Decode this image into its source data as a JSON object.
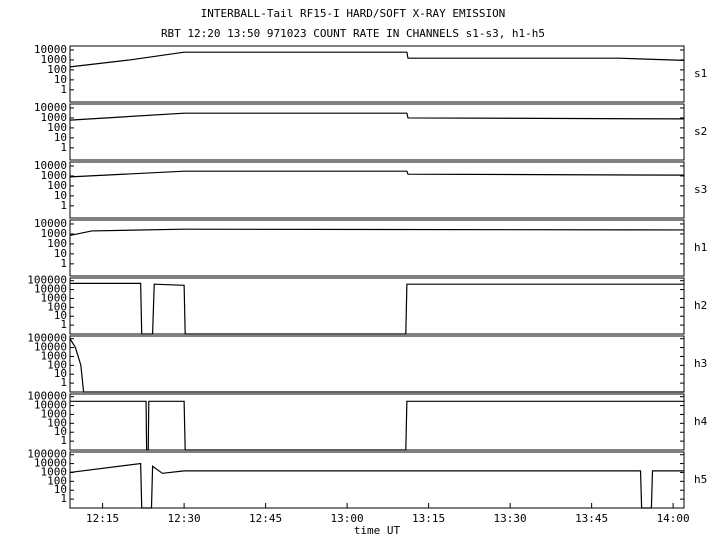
{
  "header": {
    "title": "INTERBALL-Tail RF15-I HARD/SOFT X-RAY EMISSION",
    "subtitle": "RBT 12:20 13:50 971023  COUNT RATE IN CHANNELS s1-s3, h1-h5"
  },
  "chart_data": [
    {
      "type": "line",
      "name": "s1",
      "log": true,
      "color": "#000000",
      "xlim": [
        729,
        842
      ],
      "ylim": [
        0.06,
        25000
      ],
      "yticks": [
        1,
        10,
        100,
        1000,
        10000
      ],
      "x": [
        729,
        740,
        750,
        791,
        791.2,
        830,
        842
      ],
      "values": [
        200,
        1000,
        6000,
        6000,
        1500,
        1500,
        900
      ]
    },
    {
      "type": "line",
      "name": "s2",
      "log": true,
      "color": "#000000",
      "xlim": [
        729,
        842
      ],
      "ylim": [
        0.06,
        25000
      ],
      "yticks": [
        1,
        10,
        100,
        1000,
        10000
      ],
      "x": [
        729,
        750,
        791,
        791.2,
        842
      ],
      "values": [
        600,
        3000,
        3000,
        1000,
        800
      ]
    },
    {
      "type": "line",
      "name": "s3",
      "log": true,
      "color": "#000000",
      "xlim": [
        729,
        842
      ],
      "ylim": [
        0.06,
        25000
      ],
      "yticks": [
        1,
        10,
        100,
        1000,
        10000
      ],
      "x": [
        729,
        750,
        791,
        791.2,
        842
      ],
      "values": [
        800,
        3000,
        3000,
        1500,
        1200
      ]
    },
    {
      "type": "line",
      "name": "h1",
      "log": true,
      "color": "#000000",
      "xlim": [
        729,
        842
      ],
      "ylim": [
        0.06,
        25000
      ],
      "yticks": [
        1,
        10,
        100,
        1000,
        10000
      ],
      "x": [
        729,
        733,
        750,
        842
      ],
      "values": [
        700,
        2000,
        3000,
        2500
      ]
    },
    {
      "type": "line",
      "name": "h2",
      "log": true,
      "color": "#000000",
      "xlim": [
        729,
        842
      ],
      "ylim": [
        0.1,
        200000
      ],
      "yticks": [
        1,
        10,
        100,
        1000,
        10000,
        100000
      ],
      "x": [
        729,
        742,
        742.2,
        744.2,
        744.5,
        750,
        750.2,
        790.8,
        791,
        842
      ],
      "values": [
        50000,
        50000,
        0.1,
        0.1,
        40000,
        30000,
        0.1,
        0.1,
        40000,
        40000
      ]
    },
    {
      "type": "line",
      "name": "h3",
      "log": true,
      "color": "#000000",
      "xlim": [
        729,
        842
      ],
      "ylim": [
        0.1,
        200000
      ],
      "yticks": [
        1,
        10,
        100,
        1000,
        10000,
        100000
      ],
      "x": [
        729,
        730,
        731,
        731.5,
        842
      ],
      "values": [
        100000,
        10000,
        100,
        0.1,
        0.1
      ]
    },
    {
      "type": "line",
      "name": "h4",
      "log": true,
      "color": "#000000",
      "xlim": [
        729,
        842
      ],
      "ylim": [
        0.1,
        200000
      ],
      "yticks": [
        1,
        10,
        100,
        1000,
        10000,
        100000
      ],
      "x": [
        729,
        743,
        743.1,
        743.4,
        743.5,
        750,
        750.2,
        790.8,
        791,
        842
      ],
      "values": [
        30000,
        30000,
        0.1,
        0.1,
        30000,
        30000,
        0.1,
        0.1,
        30000,
        30000
      ]
    },
    {
      "type": "line",
      "name": "h5",
      "log": true,
      "color": "#000000",
      "xlim": [
        729,
        842
      ],
      "ylim": [
        0.1,
        200000
      ],
      "yticks": [
        1,
        10,
        100,
        1000,
        10000,
        100000
      ],
      "x": [
        729,
        742,
        742.2,
        744,
        744.2,
        746,
        750,
        834,
        834.2,
        836,
        836.2,
        842
      ],
      "values": [
        1000,
        10000,
        0.1,
        0.1,
        5000,
        800,
        1500,
        1500,
        0.1,
        0.1,
        1500,
        1500
      ],
      "xlabel": "time UT",
      "xticks": [
        {
          "value": 735,
          "label": "12:15"
        },
        {
          "value": 750,
          "label": "12:30"
        },
        {
          "value": 765,
          "label": "12:45"
        },
        {
          "value": 780,
          "label": "13:00"
        },
        {
          "value": 795,
          "label": "13:15"
        },
        {
          "value": 810,
          "label": "13:30"
        },
        {
          "value": 825,
          "label": "13:45"
        },
        {
          "value": 840,
          "label": "14:00"
        }
      ]
    }
  ]
}
